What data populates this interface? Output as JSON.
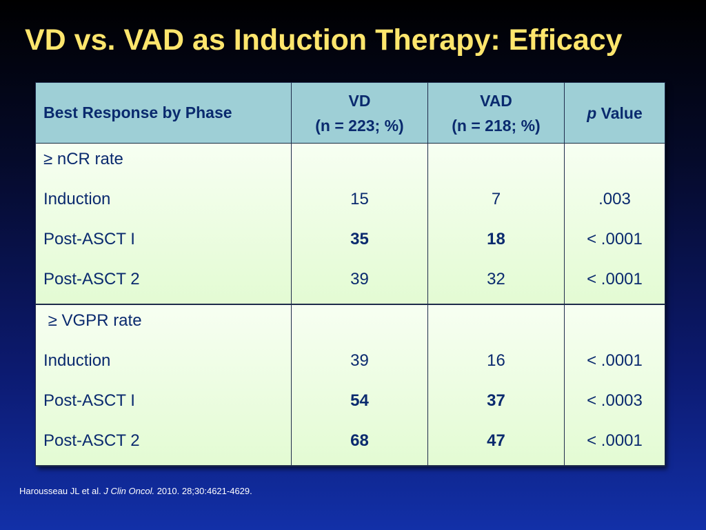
{
  "slide": {
    "title": "VD vs. VAD as Induction Therapy: Efficacy"
  },
  "table": {
    "header": {
      "col1": "Best Response by Phase",
      "col2_line1": "VD",
      "col2_line2": "(n = 223; %)",
      "col3_line1": "VAD",
      "col3_line2": "(n = 218; %)",
      "col4_italic": "p",
      "col4_rest": " Value"
    },
    "groups": [
      {
        "label": "≥ nCR rate",
        "rows": [
          {
            "phase": "Induction",
            "vd": "15",
            "vad": "7",
            "p": ".003",
            "bold": false
          },
          {
            "phase": "Post-ASCT I",
            "vd": "35",
            "vad": "18",
            "p": "< .0001",
            "bold": true
          },
          {
            "phase": "Post-ASCT 2",
            "vd": "39",
            "vad": "32",
            "p": "< .0001",
            "bold": false
          }
        ]
      },
      {
        "label": " ≥ VGPR rate",
        "rows": [
          {
            "phase": "Induction",
            "vd": "39",
            "vad": "16",
            "p": "< .0001",
            "bold": false
          },
          {
            "phase": "Post-ASCT I",
            "vd": "54",
            "vad": "37",
            "p": "< .0003",
            "bold": true
          },
          {
            "phase": "Post-ASCT 2",
            "vd": "68",
            "vad": "47",
            "p": "< .0001",
            "bold": true
          }
        ]
      }
    ]
  },
  "citation": {
    "authors": "Harousseau JL et al. ",
    "journal": "J Clin Oncol.",
    "details": " 2010. 28;30:4621-4629."
  },
  "colors": {
    "title": "#ffe66d",
    "header_bg": "#9ecfd6",
    "body_bg": "#e3fbd3",
    "text": "#0a2a6e"
  }
}
